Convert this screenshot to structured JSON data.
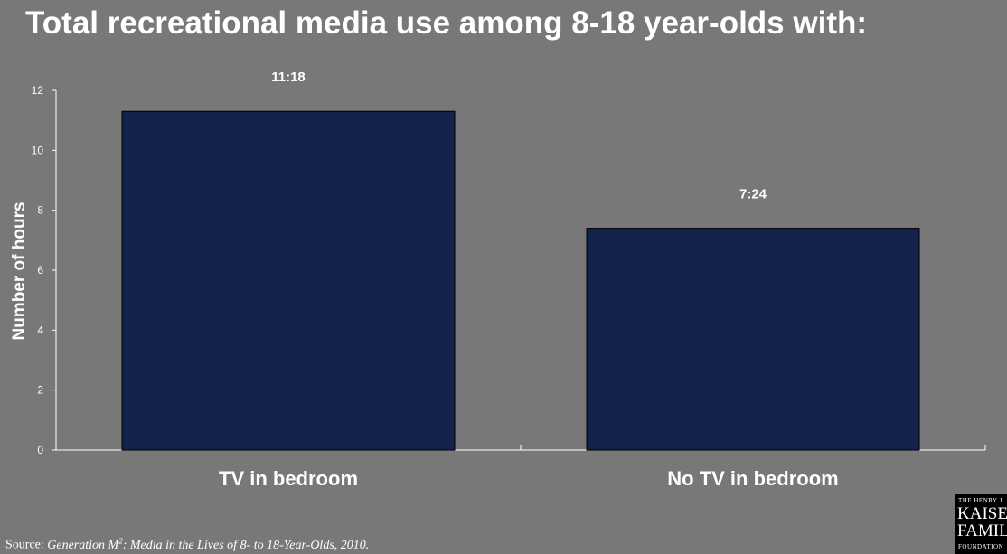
{
  "title": "Total recreational media use among 8-18 year-olds with:",
  "source": {
    "prefix": "Source: ",
    "pub_before": "Generation M",
    "pub_sup": "2",
    "pub_after": ": Media in the Lives of 8- to 18-Year-Olds, 2010."
  },
  "logo": {
    "line1": "THE HENRY J.",
    "line2": "KAISER",
    "line3": "FAMILY",
    "line4": "FOUNDATION"
  },
  "colors": {
    "background": "#787878",
    "bar": "#13224a",
    "text": "#ffffff"
  },
  "chart_data": {
    "type": "bar",
    "categories": [
      "TV in bedroom",
      "No TV in bedroom"
    ],
    "values": [
      11.3,
      7.4
    ],
    "data_labels": [
      "11:18",
      "7:24"
    ],
    "title": "Total recreational media use among 8-18 year-olds with:",
    "xlabel": "",
    "ylabel": "Number of hours",
    "ylim": [
      0,
      12
    ],
    "yticks": [
      0,
      2,
      4,
      6,
      8,
      10,
      12
    ],
    "grid": false,
    "legend": "none"
  }
}
